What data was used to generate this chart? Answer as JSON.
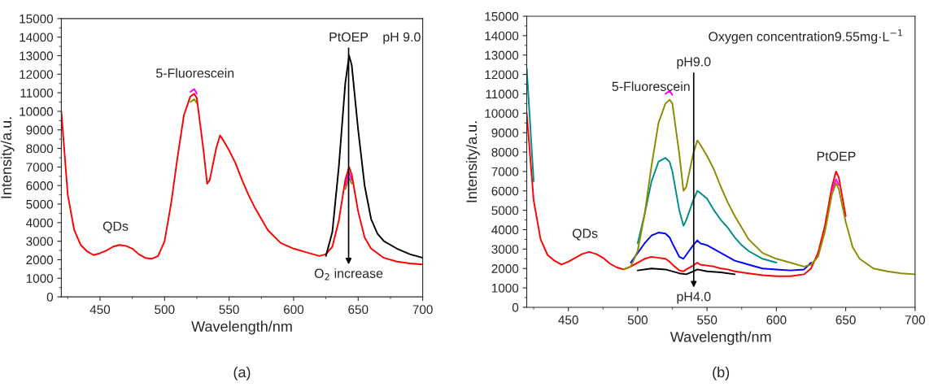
{
  "chart_data": [
    {
      "type": "line",
      "xlabel": "Wavelength/nm",
      "ylabel": "Intensity/a.u.",
      "xlim": [
        420,
        700
      ],
      "ylim": [
        0,
        15000
      ],
      "xticks": [
        450,
        500,
        550,
        600,
        650,
        700
      ],
      "yticks": [
        0,
        1000,
        2000,
        3000,
        4000,
        5000,
        6000,
        7000,
        8000,
        9000,
        10000,
        11000,
        12000,
        13000,
        14000,
        15000
      ],
      "x": [
        420,
        425,
        430,
        435,
        440,
        445,
        450,
        455,
        460,
        465,
        470,
        475,
        480,
        485,
        490,
        495,
        500,
        505,
        510,
        515,
        520,
        523,
        525,
        530,
        533,
        535,
        540,
        543,
        545,
        550,
        555,
        560,
        565,
        570,
        575,
        580,
        590,
        600,
        610,
        620,
        625,
        630,
        635,
        640,
        643,
        645,
        650,
        655,
        660,
        670,
        680,
        690,
        700
      ],
      "series": [
        {
          "color": "#8b8b00",
          "values": [
            null,
            null,
            null,
            null,
            null,
            null,
            null,
            null,
            null,
            null,
            null,
            null,
            null,
            null,
            null,
            null,
            null,
            null,
            null,
            null,
            10500,
            10650,
            10450,
            null,
            null,
            null,
            null,
            null,
            null,
            null,
            null,
            null,
            null,
            null,
            null,
            null,
            null,
            null,
            null,
            null,
            null,
            null,
            null,
            5800,
            6400,
            6100,
            null,
            null,
            null,
            null,
            null,
            null,
            null
          ]
        },
        {
          "color": "#ff00ff",
          "values": [
            null,
            null,
            null,
            null,
            null,
            null,
            null,
            null,
            null,
            null,
            null,
            null,
            null,
            null,
            null,
            null,
            null,
            null,
            null,
            null,
            11050,
            11200,
            10950,
            null,
            null,
            null,
            null,
            null,
            null,
            null,
            null,
            null,
            null,
            null,
            null,
            null,
            null,
            null,
            null,
            null,
            null,
            null,
            null,
            6000,
            6700,
            6300,
            null,
            null,
            null,
            null,
            null,
            null,
            null
          ]
        },
        {
          "color": "#ff0000",
          "values": [
            10000,
            5500,
            3600,
            2800,
            2450,
            2250,
            2350,
            2500,
            2700,
            2800,
            2750,
            2600,
            2300,
            2100,
            2050,
            2200,
            3000,
            5000,
            7500,
            9800,
            10800,
            10950,
            10700,
            8000,
            6100,
            6300,
            8000,
            8700,
            8500,
            7900,
            7200,
            6300,
            5500,
            4800,
            4200,
            3600,
            2900,
            2600,
            2400,
            2200,
            2300,
            2700,
            4100,
            6300,
            7000,
            6600,
            4600,
            3200,
            2600,
            2100,
            1900,
            1800,
            1750
          ]
        },
        {
          "color": "#000000",
          "x": [
            625,
            630,
            635,
            640,
            643,
            645,
            650,
            655,
            660,
            665,
            670,
            680,
            690,
            700
          ],
          "values": [
            2200,
            3500,
            7000,
            11500,
            13000,
            12500,
            9000,
            6000,
            4200,
            3400,
            3000,
            2600,
            2300,
            2100
          ]
        }
      ],
      "annotations": [
        "PtOEP",
        "O$_{2}$ increase",
        "5-Fluorescein",
        "QDs",
        "pH 9.0",
        "(a)"
      ]
    },
    {
      "type": "line",
      "xlabel": "Wavelength/nm",
      "ylabel": "Intensity/a.u.",
      "xlim": [
        420,
        700
      ],
      "ylim": [
        0,
        15000
      ],
      "xticks": [
        450,
        500,
        550,
        600,
        650,
        700
      ],
      "yticks": [
        0,
        1000,
        2000,
        3000,
        4000,
        5000,
        6000,
        7000,
        8000,
        9000,
        10000,
        11000,
        12000,
        13000,
        14000,
        15000
      ],
      "x": [
        420,
        425,
        430,
        435,
        440,
        445,
        450,
        455,
        460,
        465,
        470,
        475,
        480,
        485,
        490,
        495,
        500,
        505,
        510,
        515,
        520,
        523,
        525,
        530,
        533,
        535,
        540,
        543,
        545,
        550,
        555,
        560,
        565,
        570,
        575,
        580,
        590,
        600,
        610,
        620,
        625,
        630,
        635,
        640,
        643,
        645,
        650,
        655,
        660,
        670,
        680,
        690,
        700
      ],
      "series": [
        {
          "color": "#000000",
          "x": [
            500,
            510,
            520,
            530,
            535,
            540,
            543,
            550,
            560,
            570
          ],
          "values": [
            1900,
            2000,
            1950,
            1750,
            1700,
            1850,
            1950,
            1850,
            1800,
            1700
          ]
        },
        {
          "color": "#ff0000",
          "values": [
            10000,
            5500,
            3500,
            2700,
            2400,
            2200,
            2350,
            2550,
            2750,
            2850,
            2750,
            2550,
            2250,
            2050,
            1950,
            2100,
            2300,
            2500,
            2600,
            2550,
            2500,
            2350,
            2200,
            1900,
            1850,
            1950,
            2150,
            2300,
            2200,
            2150,
            2100,
            2000,
            1950,
            1850,
            1800,
            1750,
            1650,
            1600,
            1600,
            1700,
            2000,
            2800,
            4200,
            6200,
            7000,
            6700,
            4700,
            null,
            null,
            null,
            null,
            null,
            null
          ]
        },
        {
          "color": "#0000ff",
          "x": [
            495,
            500,
            505,
            510,
            515,
            520,
            523,
            525,
            530,
            533,
            535,
            540,
            543,
            545,
            550,
            555,
            560,
            565,
            570,
            575,
            580,
            590,
            600,
            610,
            620,
            625
          ],
          "values": [
            2300,
            2800,
            3300,
            3700,
            3850,
            3800,
            3600,
            3300,
            2600,
            2500,
            2700,
            3200,
            3450,
            3300,
            3200,
            3000,
            2800,
            2600,
            2400,
            2300,
            2200,
            2000,
            1950,
            1900,
            1950,
            2300
          ]
        },
        {
          "color": "#008b8b",
          "values": [
            12300,
            6500,
            null,
            null,
            null,
            null,
            null,
            null,
            null,
            null,
            null,
            null,
            null,
            null,
            null,
            null,
            3300,
            4800,
            6500,
            7500,
            7700,
            7500,
            7000,
            5000,
            4200,
            4500,
            5500,
            6000,
            5900,
            5600,
            5000,
            4500,
            4100,
            3600,
            3200,
            2900,
            2500,
            2300,
            null,
            null,
            null,
            null,
            null,
            null,
            null,
            null,
            null,
            null,
            null,
            null,
            null,
            null,
            null
          ]
        },
        {
          "color": "#ff00ff",
          "values": [
            null,
            null,
            null,
            null,
            null,
            null,
            null,
            null,
            null,
            null,
            null,
            null,
            null,
            null,
            null,
            null,
            null,
            null,
            null,
            null,
            11000,
            11150,
            10950,
            null,
            null,
            null,
            null,
            null,
            null,
            null,
            null,
            null,
            null,
            null,
            null,
            null,
            null,
            null,
            null,
            null,
            null,
            null,
            null,
            6000,
            6600,
            6300,
            null,
            null,
            null,
            null,
            null,
            null,
            null
          ]
        },
        {
          "color": "#8b8b00",
          "values": [
            null,
            null,
            null,
            null,
            null,
            null,
            null,
            null,
            null,
            null,
            null,
            null,
            null,
            null,
            1950,
            2100,
            2900,
            4800,
            7300,
            9500,
            10500,
            10700,
            10500,
            7900,
            6000,
            6200,
            7900,
            8600,
            8400,
            7800,
            7100,
            6200,
            5400,
            4700,
            4100,
            3500,
            2800,
            2500,
            2300,
            2100,
            2200,
            2600,
            3900,
            5800,
            6400,
            6100,
            4400,
            3100,
            2500,
            2000,
            1850,
            1750,
            1700
          ]
        }
      ],
      "annotations": [
        "pH9.0",
        "pH4.0",
        "5-Fluorescein",
        "QDs",
        "PtOEP",
        "Oxygen concentration9.55mg·L$^{−1}$",
        "(b)"
      ]
    }
  ]
}
